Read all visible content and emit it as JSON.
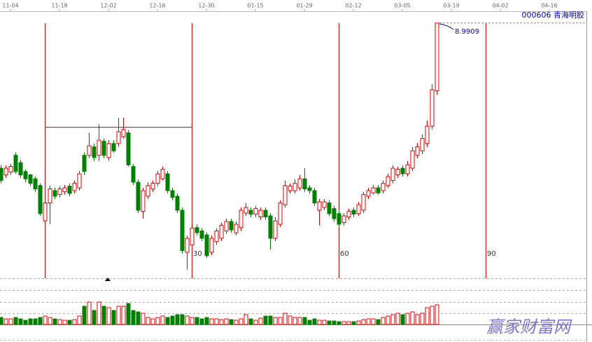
{
  "chart_data": {
    "type": "candlestick",
    "title": "000606 青海明胶",
    "last_price_label": 8.9909,
    "xticks": [
      {
        "value": 2,
        "label": "11-04"
      },
      {
        "value": 12,
        "label": "11-18"
      },
      {
        "value": 22,
        "label": "12-02"
      },
      {
        "value": 32,
        "label": "12-16"
      },
      {
        "value": 42,
        "label": "12-30"
      },
      {
        "value": 52,
        "label": "01-15"
      },
      {
        "value": 62,
        "label": "01-29"
      },
      {
        "value": 72,
        "label": "02-12"
      },
      {
        "value": 82,
        "label": "03-05"
      },
      {
        "value": 92,
        "label": "03-19"
      },
      {
        "value": 102,
        "label": "04-02"
      },
      {
        "value": 112,
        "label": "04-16"
      }
    ],
    "ylim": [
      4.5,
      9.0
    ],
    "up_color": "#e00000",
    "down_color": "#008000",
    "cycle": {
      "start": 9,
      "marks": [
        30,
        60,
        90
      ],
      "level": 7.13,
      "color": "#d00000"
    },
    "open": [
      6.4,
      6.28,
      6.33,
      6.63,
      6.5,
      6.34,
      6.28,
      6.21,
      6.09,
      5.46,
      5.78,
      6.0,
      5.93,
      5.98,
      6.08,
      6.0,
      6.05,
      6.63,
      6.63,
      6.78,
      6.63,
      6.88,
      6.59,
      6.84,
      6.84,
      6.96,
      7.03,
      6.43,
      6.15,
      5.63,
      5.9,
      6.03,
      6.13,
      6.21,
      6.3,
      6.0,
      5.9,
      5.65,
      4.9,
      5.03,
      5.34,
      5.28,
      5.21,
      4.9,
      5.09,
      5.15,
      5.28,
      5.45,
      5.25,
      5.34,
      5.6,
      5.65,
      5.58,
      5.53,
      5.65,
      5.55,
      5.15,
      5.4,
      5.75,
      6.0,
      6.0,
      6.05,
      6.21,
      6.05,
      6.0,
      5.65,
      5.7,
      5.78,
      5.68,
      5.59,
      5.43,
      5.53,
      5.65,
      5.59,
      5.65,
      5.9,
      5.96,
      6.05,
      6.0,
      6.09,
      6.18,
      6.28,
      6.4,
      6.3,
      6.4,
      6.63,
      6.71,
      6.84,
      7.15,
      7.78
    ],
    "high": [
      6.46,
      6.45,
      6.48,
      6.68,
      6.55,
      6.38,
      6.3,
      6.25,
      6.13,
      6.15,
      6.09,
      6.05,
      6.08,
      6.1,
      6.13,
      6.18,
      6.35,
      6.68,
      7.03,
      6.84,
      7.18,
      6.93,
      6.9,
      6.9,
      7.3,
      7.3,
      7.08,
      6.48,
      6.2,
      6.05,
      6.15,
      6.18,
      6.35,
      6.43,
      6.35,
      6.05,
      5.95,
      5.7,
      5.2,
      5.38,
      5.4,
      5.33,
      5.26,
      5.2,
      5.33,
      5.43,
      5.5,
      5.5,
      5.45,
      5.7,
      5.78,
      5.7,
      5.73,
      5.7,
      5.7,
      5.6,
      5.53,
      5.83,
      6.18,
      6.13,
      6.2,
      6.28,
      6.4,
      6.1,
      6.05,
      5.85,
      5.85,
      5.83,
      5.73,
      5.65,
      5.6,
      5.68,
      5.7,
      5.8,
      5.98,
      6.05,
      6.1,
      6.1,
      6.18,
      6.3,
      6.45,
      6.43,
      6.45,
      6.53,
      6.78,
      6.85,
      7.0,
      7.25,
      7.9,
      8.9909
    ],
    "low": [
      6.13,
      6.23,
      6.28,
      6.3,
      6.23,
      6.15,
      6.08,
      5.98,
      5.55,
      5.4,
      5.4,
      5.85,
      5.88,
      5.93,
      5.9,
      5.95,
      6.0,
      6.28,
      6.58,
      6.53,
      6.53,
      6.58,
      6.53,
      6.68,
      6.78,
      6.93,
      6.43,
      6.1,
      5.6,
      5.5,
      5.85,
      5.98,
      6.08,
      6.18,
      5.95,
      5.83,
      5.6,
      4.88,
      4.59,
      4.98,
      5.2,
      5.1,
      4.8,
      4.85,
      5.03,
      5.1,
      5.23,
      5.25,
      5.2,
      5.28,
      5.55,
      5.53,
      5.53,
      5.48,
      5.48,
      4.95,
      5.1,
      5.35,
      5.7,
      5.95,
      5.95,
      6.0,
      5.98,
      5.95,
      5.73,
      5.38,
      5.65,
      5.55,
      5.45,
      5.35,
      5.38,
      5.48,
      5.53,
      5.55,
      5.6,
      5.85,
      5.93,
      5.93,
      5.95,
      6.05,
      6.13,
      6.23,
      6.25,
      6.25,
      6.35,
      6.58,
      6.65,
      6.78,
      7.09,
      7.71
    ],
    "close": [
      6.18,
      6.4,
      6.43,
      6.34,
      6.28,
      6.21,
      6.13,
      6.03,
      5.59,
      5.78,
      6.03,
      5.9,
      6.03,
      6.05,
      5.95,
      6.13,
      6.3,
      6.34,
      6.8,
      6.59,
      6.9,
      6.63,
      6.84,
      6.71,
      7.05,
      7.09,
      6.46,
      6.15,
      5.65,
      6.0,
      6.09,
      6.13,
      6.3,
      6.38,
      6.0,
      5.88,
      5.65,
      4.93,
      5.15,
      5.33,
      5.25,
      5.15,
      4.84,
      5.15,
      5.28,
      5.38,
      5.45,
      5.3,
      5.4,
      5.65,
      5.7,
      5.58,
      5.68,
      5.65,
      5.53,
      5.15,
      5.46,
      5.78,
      6.09,
      6.08,
      6.13,
      6.21,
      6.03,
      6.0,
      5.78,
      5.8,
      5.8,
      5.59,
      5.5,
      5.4,
      5.55,
      5.63,
      5.58,
      5.75,
      5.93,
      6.0,
      6.05,
      5.96,
      6.13,
      6.25,
      6.4,
      6.38,
      6.3,
      6.46,
      6.71,
      6.78,
      6.93,
      7.15,
      7.8,
      8.99
    ],
    "vlim": [
      0,
      32
    ],
    "volume": [
      10,
      8,
      8,
      10,
      8,
      6,
      8,
      8,
      10,
      12,
      10,
      8,
      7,
      6,
      6,
      7,
      12,
      26,
      32,
      20,
      32,
      26,
      24,
      20,
      26,
      26,
      30,
      20,
      18,
      16,
      10,
      8,
      10,
      12,
      10,
      12,
      14,
      14,
      12,
      10,
      10,
      8,
      10,
      8,
      8,
      7,
      8,
      7,
      6,
      8,
      14,
      8,
      6,
      9,
      12,
      12,
      10,
      10,
      16,
      12,
      10,
      10,
      10,
      6,
      8,
      6,
      6,
      5,
      5,
      4,
      4,
      4,
      4,
      5,
      7,
      8,
      8,
      7,
      10,
      12,
      14,
      16,
      14,
      16,
      18,
      14,
      16,
      24,
      26,
      28
    ],
    "watermark": "赢家财富网"
  }
}
